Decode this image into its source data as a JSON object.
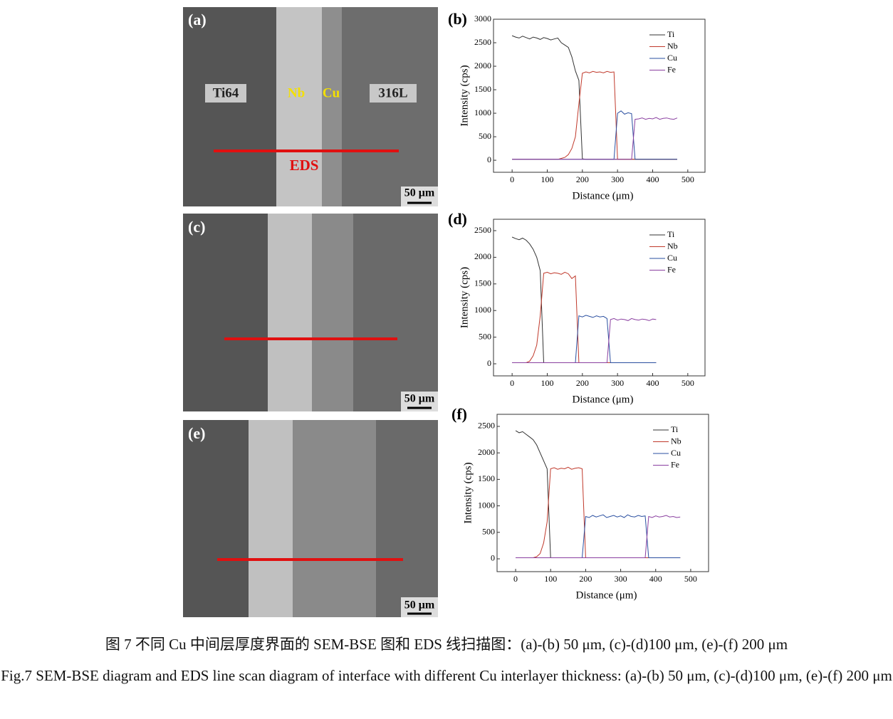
{
  "images": [
    {
      "label": "(a)",
      "regions": [
        "Ti64",
        "Nb",
        "Cu",
        "316L"
      ],
      "line_label": "EDS",
      "scale": "50 μm"
    },
    {
      "label": "(c)",
      "scale": "50 μm"
    },
    {
      "label": "(e)",
      "scale": "50 μm"
    }
  ],
  "chart_data": [
    {
      "type": "line",
      "label": "(b)",
      "x_label": "Distance (μm)",
      "y_label": "Intensity (cps)",
      "legend": "upper right",
      "xlim": [
        -53,
        549
      ],
      "ylim": [
        -256,
        3000
      ],
      "xticks": [
        0,
        100,
        200,
        300,
        400,
        500
      ],
      "yticks": [
        0,
        500,
        1000,
        1500,
        2000,
        2500,
        3000
      ],
      "x": [
        0,
        10,
        20,
        30,
        40,
        50,
        60,
        70,
        80,
        90,
        100,
        110,
        120,
        130,
        140,
        150,
        160,
        170,
        180,
        190,
        200,
        210,
        220,
        230,
        240,
        250,
        260,
        270,
        280,
        290,
        300,
        310,
        320,
        330,
        340,
        350,
        360,
        370,
        380,
        390,
        400,
        410,
        420,
        430,
        440,
        450,
        460,
        470
      ],
      "series": [
        {
          "name": "Ti",
          "color": "#333333",
          "values": [
            2650,
            2620,
            2600,
            2640,
            2610,
            2580,
            2620,
            2600,
            2570,
            2610,
            2590,
            2560,
            2580,
            2600,
            2500,
            2450,
            2400,
            2200,
            1900,
            1700,
            30,
            20,
            20,
            20,
            20,
            20,
            20,
            20,
            20,
            20,
            20,
            20,
            20,
            20,
            20,
            20,
            20,
            20,
            20,
            20,
            20,
            20,
            20,
            20,
            20,
            20,
            20,
            20
          ]
        },
        {
          "name": "Nb",
          "color": "#c0392b",
          "values": [
            20,
            20,
            20,
            20,
            20,
            20,
            20,
            20,
            20,
            20,
            20,
            20,
            20,
            20,
            40,
            60,
            120,
            250,
            500,
            1200,
            1850,
            1880,
            1860,
            1890,
            1870,
            1880,
            1860,
            1890,
            1870,
            1880,
            20,
            20,
            20,
            20,
            20,
            20,
            20,
            20,
            20,
            20,
            20,
            20,
            20,
            20,
            20,
            20,
            20,
            20
          ]
        },
        {
          "name": "Cu",
          "color": "#2a4fa0",
          "values": [
            20,
            20,
            20,
            20,
            20,
            20,
            20,
            20,
            20,
            20,
            20,
            20,
            20,
            20,
            20,
            20,
            20,
            20,
            20,
            20,
            20,
            20,
            20,
            20,
            20,
            20,
            20,
            20,
            20,
            20,
            1000,
            1050,
            980,
            1010,
            990,
            20,
            20,
            20,
            20,
            20,
            20,
            20,
            20,
            20,
            20,
            20,
            20,
            20
          ]
        },
        {
          "name": "Fe",
          "color": "#8a3fa0",
          "values": [
            20,
            20,
            20,
            20,
            20,
            20,
            20,
            20,
            20,
            20,
            20,
            20,
            20,
            20,
            20,
            20,
            20,
            20,
            20,
            20,
            20,
            20,
            20,
            20,
            20,
            20,
            20,
            20,
            20,
            20,
            20,
            20,
            20,
            20,
            20,
            870,
            880,
            900,
            870,
            890,
            880,
            910,
            870,
            890,
            900,
            880,
            870,
            900
          ]
        }
      ]
    },
    {
      "type": "line",
      "label": "(d)",
      "x_label": "Distance (μm)",
      "y_label": "Intensity (cps)",
      "legend": "upper right",
      "xlim": [
        -53,
        549
      ],
      "ylim": [
        -227,
        2714
      ],
      "xticks": [
        0,
        100,
        200,
        300,
        400,
        500
      ],
      "yticks": [
        0,
        500,
        1000,
        1500,
        2000,
        2500
      ],
      "x": [
        0,
        10,
        20,
        30,
        40,
        50,
        60,
        70,
        80,
        90,
        100,
        110,
        120,
        130,
        140,
        150,
        160,
        170,
        180,
        190,
        200,
        210,
        220,
        230,
        240,
        250,
        260,
        270,
        280,
        290,
        300,
        310,
        320,
        330,
        340,
        350,
        360,
        370,
        380,
        390,
        400,
        410
      ],
      "series": [
        {
          "name": "Ti",
          "color": "#333333",
          "values": [
            2380,
            2350,
            2330,
            2360,
            2320,
            2250,
            2150,
            2000,
            1750,
            20,
            20,
            20,
            20,
            20,
            20,
            20,
            20,
            20,
            20,
            20,
            20,
            20,
            20,
            20,
            20,
            20,
            20,
            20,
            20,
            20,
            20,
            20,
            20,
            20,
            20,
            20,
            20,
            20,
            20,
            20,
            20,
            20
          ]
        },
        {
          "name": "Nb",
          "color": "#c0392b",
          "values": [
            20,
            20,
            20,
            20,
            20,
            50,
            150,
            350,
            900,
            1700,
            1720,
            1690,
            1710,
            1700,
            1680,
            1720,
            1690,
            1600,
            1650,
            20,
            20,
            20,
            20,
            20,
            20,
            20,
            20,
            20,
            20,
            20,
            20,
            20,
            20,
            20,
            20,
            20,
            20,
            20,
            20,
            20,
            20,
            20
          ]
        },
        {
          "name": "Cu",
          "color": "#2a4fa0",
          "values": [
            20,
            20,
            20,
            20,
            20,
            20,
            20,
            20,
            20,
            20,
            20,
            20,
            20,
            20,
            20,
            20,
            20,
            20,
            20,
            900,
            880,
            910,
            890,
            870,
            900,
            880,
            890,
            850,
            20,
            20,
            20,
            20,
            20,
            20,
            20,
            20,
            20,
            20,
            20,
            20,
            20,
            20
          ]
        },
        {
          "name": "Fe",
          "color": "#8a3fa0",
          "values": [
            20,
            20,
            20,
            20,
            20,
            20,
            20,
            20,
            20,
            20,
            20,
            20,
            20,
            20,
            20,
            20,
            20,
            20,
            20,
            20,
            20,
            20,
            20,
            20,
            20,
            20,
            20,
            20,
            830,
            850,
            820,
            840,
            830,
            810,
            850,
            830,
            820,
            840,
            830,
            810,
            840,
            830
          ]
        }
      ]
    },
    {
      "type": "line",
      "label": "(f)",
      "x_label": "Distance (μm)",
      "y_label": "Intensity (cps)",
      "legend": "upper right",
      "xlim": [
        -53,
        551
      ],
      "ylim": [
        -242,
        2728
      ],
      "xticks": [
        0,
        100,
        200,
        300,
        400,
        500
      ],
      "yticks": [
        0,
        500,
        1000,
        1500,
        2000,
        2500
      ],
      "x": [
        0,
        10,
        20,
        30,
        40,
        50,
        60,
        70,
        80,
        90,
        100,
        110,
        120,
        130,
        140,
        150,
        160,
        170,
        180,
        190,
        200,
        210,
        220,
        230,
        240,
        250,
        260,
        270,
        280,
        290,
        300,
        310,
        320,
        330,
        340,
        350,
        360,
        370,
        380,
        390,
        400,
        410,
        420,
        430,
        440,
        450,
        460,
        470
      ],
      "series": [
        {
          "name": "Ti",
          "color": "#333333",
          "values": [
            2420,
            2380,
            2400,
            2350,
            2300,
            2250,
            2150,
            2000,
            1850,
            1700,
            20,
            20,
            20,
            20,
            20,
            20,
            20,
            20,
            20,
            20,
            20,
            20,
            20,
            20,
            20,
            20,
            20,
            20,
            20,
            20,
            20,
            20,
            20,
            20,
            20,
            20,
            20,
            20,
            20,
            20,
            20,
            20,
            20,
            20,
            20,
            20,
            20,
            20
          ]
        },
        {
          "name": "Nb",
          "color": "#c0392b",
          "values": [
            20,
            20,
            20,
            20,
            20,
            20,
            40,
            100,
            300,
            700,
            1700,
            1720,
            1690,
            1710,
            1700,
            1730,
            1690,
            1710,
            1720,
            1700,
            20,
            20,
            20,
            20,
            20,
            20,
            20,
            20,
            20,
            20,
            20,
            20,
            20,
            20,
            20,
            20,
            20,
            20,
            20,
            20,
            20,
            20,
            20,
            20,
            20,
            20,
            20,
            20
          ]
        },
        {
          "name": "Cu",
          "color": "#2a4fa0",
          "values": [
            20,
            20,
            20,
            20,
            20,
            20,
            20,
            20,
            20,
            20,
            20,
            20,
            20,
            20,
            20,
            20,
            20,
            20,
            20,
            20,
            800,
            780,
            820,
            790,
            810,
            830,
            780,
            800,
            820,
            790,
            810,
            780,
            830,
            800,
            790,
            820,
            800,
            810,
            20,
            20,
            20,
            20,
            20,
            20,
            20,
            20,
            20,
            20
          ]
        },
        {
          "name": "Fe",
          "color": "#8a3fa0",
          "values": [
            20,
            20,
            20,
            20,
            20,
            20,
            20,
            20,
            20,
            20,
            20,
            20,
            20,
            20,
            20,
            20,
            20,
            20,
            20,
            20,
            20,
            20,
            20,
            20,
            20,
            20,
            20,
            20,
            20,
            20,
            20,
            20,
            20,
            20,
            20,
            20,
            20,
            20,
            800,
            780,
            810,
            790,
            800,
            820,
            790,
            800,
            780,
            790
          ]
        }
      ]
    }
  ],
  "caption": {
    "zh": "图 7  不同 Cu 中间层厚度界面的 SEM-BSE 图和 EDS 线扫描图：(a)-(b) 50 μm, (c)-(d)100 μm, (e)-(f) 200 μm",
    "en": "Fig.7 SEM-BSE diagram and EDS line scan diagram of interface with different Cu interlayer thickness: (a)-(b) 50 μm, (c)-(d)100 μm, (e)-(f) 200 μm"
  }
}
